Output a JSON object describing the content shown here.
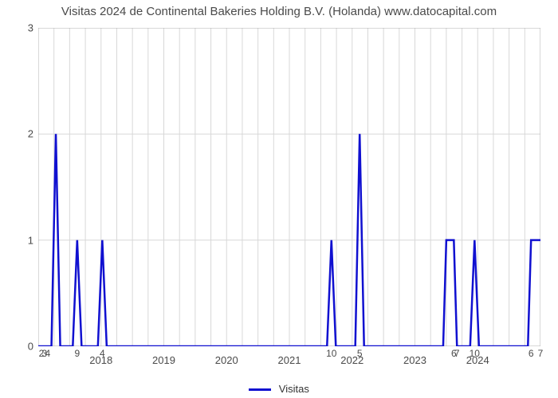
{
  "chart": {
    "type": "line",
    "title": "Visitas 2024 de Continental Bakeries Holding B.V. (Holanda) www.datocapital.com",
    "title_fontsize": 15,
    "title_color": "#4a4a4a",
    "background_color": "#ffffff",
    "plot_border_color": "#b0b0b0",
    "grid_color": "#d8d8d8",
    "grid_on": true,
    "line_color": "#1010d0",
    "line_width": 2.5,
    "ylim": [
      0,
      3
    ],
    "ytick_step": 1,
    "yticks": [
      0,
      1,
      2,
      3
    ],
    "label_fontsize": 13,
    "label_color": "#4a4a4a",
    "x_range": [
      2017.0,
      2025.0
    ],
    "x_year_ticks": [
      2018,
      2019,
      2020,
      2021,
      2022,
      2023,
      2024
    ],
    "x_grid_positions": [
      2017.0,
      2017.25,
      2017.5,
      2017.75,
      2018.0,
      2018.25,
      2018.5,
      2018.75,
      2019.0,
      2019.25,
      2019.5,
      2019.75,
      2020.0,
      2020.25,
      2020.5,
      2020.75,
      2021.0,
      2021.25,
      2021.5,
      2021.75,
      2022.0,
      2022.25,
      2022.5,
      2022.75,
      2023.0,
      2023.25,
      2023.5,
      2023.75,
      2024.0,
      2024.25,
      2024.5,
      2024.75,
      2025.0
    ],
    "data_points": [
      {
        "x": 2017.0,
        "y": 0,
        "label": ""
      },
      {
        "x": 2017.05,
        "y": 0,
        "label": "2"
      },
      {
        "x": 2017.1,
        "y": 0,
        "label": "3"
      },
      {
        "x": 2017.15,
        "y": 0,
        "label": "4"
      },
      {
        "x": 2017.21,
        "y": 0,
        "label": ""
      },
      {
        "x": 2017.28,
        "y": 2,
        "label": ""
      },
      {
        "x": 2017.35,
        "y": 0,
        "label": ""
      },
      {
        "x": 2017.55,
        "y": 0,
        "label": ""
      },
      {
        "x": 2017.62,
        "y": 1,
        "label": "9"
      },
      {
        "x": 2017.69,
        "y": 0,
        "label": ""
      },
      {
        "x": 2017.95,
        "y": 0,
        "label": ""
      },
      {
        "x": 2018.02,
        "y": 1,
        "label": "4"
      },
      {
        "x": 2018.09,
        "y": 0,
        "label": ""
      },
      {
        "x": 2021.6,
        "y": 0,
        "label": ""
      },
      {
        "x": 2021.67,
        "y": 1,
        "label": "10"
      },
      {
        "x": 2021.74,
        "y": 0,
        "label": ""
      },
      {
        "x": 2022.05,
        "y": 0,
        "label": ""
      },
      {
        "x": 2022.12,
        "y": 2,
        "label": "5"
      },
      {
        "x": 2022.19,
        "y": 0,
        "label": ""
      },
      {
        "x": 2023.45,
        "y": 0,
        "label": ""
      },
      {
        "x": 2023.5,
        "y": 1,
        "label": ""
      },
      {
        "x": 2023.62,
        "y": 1,
        "label": "6"
      },
      {
        "x": 2023.67,
        "y": 0,
        "label": "7"
      },
      {
        "x": 2023.88,
        "y": 0,
        "label": ""
      },
      {
        "x": 2023.95,
        "y": 1,
        "label": "10"
      },
      {
        "x": 2024.02,
        "y": 0,
        "label": ""
      },
      {
        "x": 2024.8,
        "y": 0,
        "label": ""
      },
      {
        "x": 2024.85,
        "y": 1,
        "label": "6"
      },
      {
        "x": 2025.0,
        "y": 1,
        "label": "7"
      }
    ],
    "legend": {
      "label": "Visitas",
      "color": "#1010d0"
    }
  }
}
